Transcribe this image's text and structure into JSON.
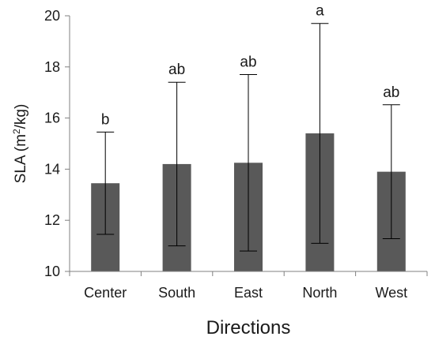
{
  "chart_data": {
    "type": "bar",
    "categories": [
      "Center",
      "South",
      "East",
      "North",
      "West"
    ],
    "values": [
      13.45,
      14.2,
      14.25,
      15.4,
      13.9
    ],
    "error": [
      2.0,
      3.2,
      3.45,
      4.3,
      2.62
    ],
    "significance_letters": [
      "b",
      "ab",
      "ab",
      "a",
      "ab"
    ],
    "xlabel": "Directions",
    "ylabel": "SLA (m²/kg)",
    "ylabel_parts": {
      "before": "SLA (m",
      "sup": "2",
      "after": "/kg)"
    },
    "ylim": [
      10,
      20
    ],
    "yticks": [
      10,
      12,
      14,
      16,
      18,
      20
    ],
    "grid": false,
    "bar_color": "#595959"
  }
}
